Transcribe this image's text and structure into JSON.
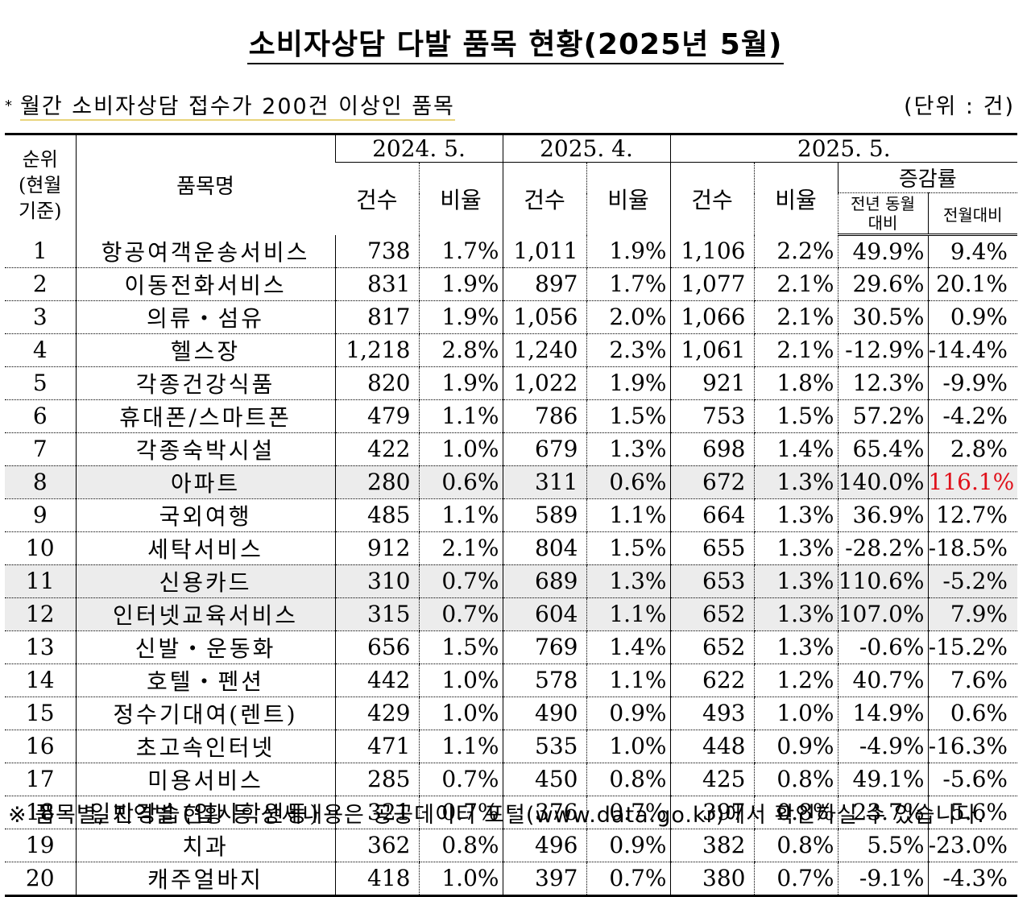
{
  "title": "소비자상담 다발 품목 현황(2025년 5월)",
  "note": {
    "star": "*",
    "text": "월간 소비자상담 접수가 200건 이상인 품목",
    "unit": "(단위 : 건)"
  },
  "header": {
    "rank": "순위 (현월 기준)",
    "name": "품목명",
    "period1": "2024. 5.",
    "period2": "2025. 4.",
    "period3": "2025. 5.",
    "count": "건수",
    "ratio": "비율",
    "change": "증감률",
    "yoy": "전년 동월대비",
    "mom": "전월대비"
  },
  "rows": [
    {
      "rank": "1",
      "name": "항공여객운송서비스",
      "c1": "738",
      "r1": "1.7%",
      "c2": "1,011",
      "r2": "1.9%",
      "c3": "1,106",
      "r3": "2.2%",
      "yoy": "49.9%",
      "mom": "9.4%"
    },
    {
      "rank": "2",
      "name": "이동전화서비스",
      "c1": "831",
      "r1": "1.9%",
      "c2": "897",
      "r2": "1.7%",
      "c3": "1,077",
      "r3": "2.1%",
      "yoy": "29.6%",
      "mom": "20.1%"
    },
    {
      "rank": "3",
      "name": "의류・섬유",
      "c1": "817",
      "r1": "1.9%",
      "c2": "1,056",
      "r2": "2.0%",
      "c3": "1,066",
      "r3": "2.1%",
      "yoy": "30.5%",
      "mom": "0.9%"
    },
    {
      "rank": "4",
      "name": "헬스장",
      "c1": "1,218",
      "r1": "2.8%",
      "c2": "1,240",
      "r2": "2.3%",
      "c3": "1,061",
      "r3": "2.1%",
      "yoy": "-12.9%",
      "mom": "-14.4%"
    },
    {
      "rank": "5",
      "name": "각종건강식품",
      "c1": "820",
      "r1": "1.9%",
      "c2": "1,022",
      "r2": "1.9%",
      "c3": "921",
      "r3": "1.8%",
      "yoy": "12.3%",
      "mom": "-9.9%"
    },
    {
      "rank": "6",
      "name": "휴대폰/스마트폰",
      "c1": "479",
      "r1": "1.1%",
      "c2": "786",
      "r2": "1.5%",
      "c3": "753",
      "r3": "1.5%",
      "yoy": "57.2%",
      "mom": "-4.2%"
    },
    {
      "rank": "7",
      "name": "각종숙박시설",
      "c1": "422",
      "r1": "1.0%",
      "c2": "679",
      "r2": "1.3%",
      "c3": "698",
      "r3": "1.4%",
      "yoy": "65.4%",
      "mom": "2.8%"
    },
    {
      "rank": "8",
      "name": "아파트",
      "c1": "280",
      "r1": "0.6%",
      "c2": "311",
      "r2": "0.6%",
      "c3": "672",
      "r3": "1.3%",
      "yoy": "140.0%",
      "mom": "116.1%"
    },
    {
      "rank": "9",
      "name": "국외여행",
      "c1": "485",
      "r1": "1.1%",
      "c2": "589",
      "r2": "1.1%",
      "c3": "664",
      "r3": "1.3%",
      "yoy": "36.9%",
      "mom": "12.7%"
    },
    {
      "rank": "10",
      "name": "세탁서비스",
      "c1": "912",
      "r1": "2.1%",
      "c2": "804",
      "r2": "1.5%",
      "c3": "655",
      "r3": "1.3%",
      "yoy": "-28.2%",
      "mom": "-18.5%"
    },
    {
      "rank": "11",
      "name": "신용카드",
      "c1": "310",
      "r1": "0.7%",
      "c2": "689",
      "r2": "1.3%",
      "c3": "653",
      "r3": "1.3%",
      "yoy": "110.6%",
      "mom": "-5.2%"
    },
    {
      "rank": "12",
      "name": "인터넷교육서비스",
      "c1": "315",
      "r1": "0.7%",
      "c2": "604",
      "r2": "1.1%",
      "c3": "652",
      "r3": "1.3%",
      "yoy": "107.0%",
      "mom": "7.9%"
    },
    {
      "rank": "13",
      "name": "신발・운동화",
      "c1": "656",
      "r1": "1.5%",
      "c2": "769",
      "r2": "1.4%",
      "c3": "652",
      "r3": "1.3%",
      "yoy": "-0.6%",
      "mom": "-15.2%"
    },
    {
      "rank": "14",
      "name": "호텔・펜션",
      "c1": "442",
      "r1": "1.0%",
      "c2": "578",
      "r2": "1.1%",
      "c3": "622",
      "r3": "1.2%",
      "yoy": "40.7%",
      "mom": "7.6%"
    },
    {
      "rank": "15",
      "name": "정수기대여(렌트)",
      "c1": "429",
      "r1": "1.0%",
      "c2": "490",
      "r2": "0.9%",
      "c3": "493",
      "r3": "1.0%",
      "yoy": "14.9%",
      "mom": "0.6%"
    },
    {
      "rank": "16",
      "name": "초고속인터넷",
      "c1": "471",
      "r1": "1.1%",
      "c2": "535",
      "r2": "1.0%",
      "c3": "448",
      "r3": "0.9%",
      "yoy": "-4.9%",
      "mom": "-16.3%"
    },
    {
      "rank": "17",
      "name": "미용서비스",
      "c1": "285",
      "r1": "0.7%",
      "c2": "450",
      "r2": "0.8%",
      "c3": "425",
      "r3": "0.8%",
      "yoy": "49.1%",
      "mom": "-5.6%"
    },
    {
      "rank": "18",
      "name": "일반강습(입시학원등)",
      "c1": "321",
      "r1": "0.7%",
      "c2": "376",
      "r2": "0.7%",
      "c3": "397",
      "r3": "0.8%",
      "yoy": "23.7%",
      "mom": "5.6%"
    },
    {
      "rank": "19",
      "name": "치과",
      "c1": "362",
      "r1": "0.8%",
      "c2": "496",
      "r2": "0.9%",
      "c3": "382",
      "r3": "0.8%",
      "yoy": "5.5%",
      "mom": "-23.0%"
    },
    {
      "rank": "20",
      "name": "캐주얼바지",
      "c1": "418",
      "r1": "1.0%",
      "c2": "397",
      "r2": "0.7%",
      "c3": "380",
      "r3": "0.7%",
      "yoy": "-9.1%",
      "mom": "-4.3%"
    }
  ],
  "highlight_rows": [
    "8",
    "11",
    "12"
  ],
  "highlight_color": "#ececec",
  "emphasis_color": "#e0101a",
  "footer": "※ 품목별, 지역별 현황 등 상세내용은 공공데이터 포털(www.data.go.kr)에서 확인하실 수 있습니다."
}
